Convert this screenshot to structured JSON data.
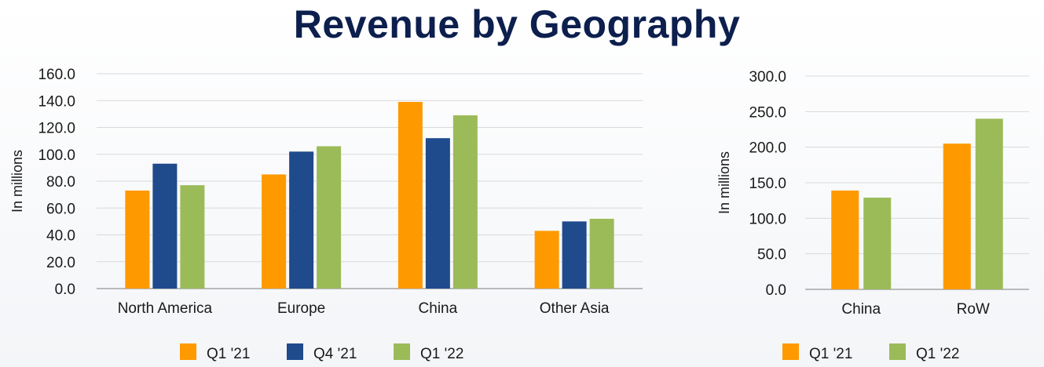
{
  "title": "Revenue by Geography",
  "colors": {
    "Q1 '21": "#ff9900",
    "Q4 '21": "#1f4a8c",
    "Q1 '22": "#9bbb59"
  },
  "chart_data": [
    {
      "type": "bar",
      "ylabel": "In millions",
      "ylim": [
        0,
        160
      ],
      "ytick_step": 20,
      "ytick_labels": [
        "0.0",
        "20.0",
        "40.0",
        "60.0",
        "80.0",
        "100.0",
        "120.0",
        "140.0",
        "160.0"
      ],
      "categories": [
        "North America",
        "Europe",
        "China",
        "Other Asia"
      ],
      "series": [
        {
          "name": "Q1 '21",
          "values": [
            73,
            85,
            139,
            43
          ]
        },
        {
          "name": "Q4 '21",
          "values": [
            93,
            102,
            112,
            50
          ]
        },
        {
          "name": "Q1 '22",
          "values": [
            77,
            106,
            129,
            52
          ]
        }
      ],
      "grid": true,
      "legend": "bottom"
    },
    {
      "type": "bar",
      "ylabel": "In millions",
      "ylim": [
        0,
        300
      ],
      "ytick_step": 50,
      "ytick_labels": [
        "0.0",
        "50.0",
        "100.0",
        "150.0",
        "200.0",
        "250.0",
        "300.0"
      ],
      "categories": [
        "China",
        "RoW"
      ],
      "series": [
        {
          "name": "Q1 '21",
          "values": [
            139,
            205
          ]
        },
        {
          "name": "Q1 '22",
          "values": [
            129,
            240
          ]
        }
      ],
      "grid": true,
      "legend": "bottom"
    }
  ]
}
